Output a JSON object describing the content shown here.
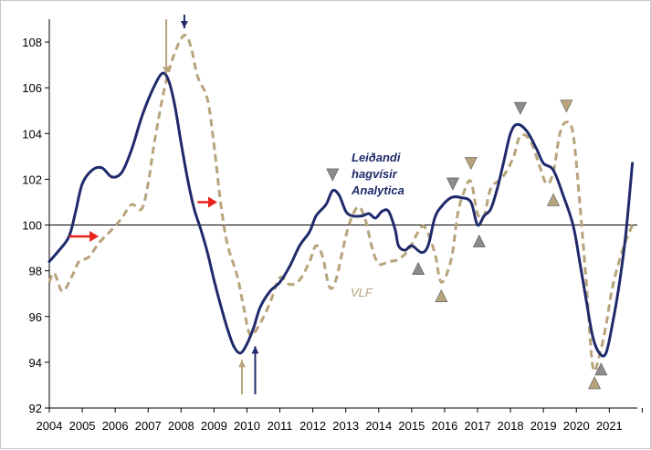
{
  "chart_data": {
    "type": "line",
    "title": "",
    "xlabel": "",
    "ylabel": "",
    "xlim": [
      2004,
      2021.85
    ],
    "ylim": [
      92,
      109
    ],
    "y_ticks": [
      92,
      94,
      96,
      98,
      100,
      102,
      104,
      106,
      108
    ],
    "x_ticks": [
      "2004",
      "2005",
      "2006",
      "2007",
      "2008",
      "2009",
      "2010",
      "2011",
      "2012",
      "2013",
      "2014",
      "2015",
      "2016",
      "2017",
      "2018",
      "2019",
      "2020",
      "2021"
    ],
    "grid": false,
    "reference_line": 100,
    "colors": {
      "series_lead": "#1f2a6b",
      "series_vlf": "#b8a47c",
      "red_arrow": "#e8231c",
      "marker_grey": "#8c8c8c"
    },
    "series": [
      {
        "name": "Leiðandi hagvísir Analytica",
        "style": "solid",
        "points": [
          [
            2004.0,
            98.4
          ],
          [
            2004.3,
            98.9
          ],
          [
            2004.6,
            99.5
          ],
          [
            2004.8,
            100.6
          ],
          [
            2005.0,
            101.8
          ],
          [
            2005.3,
            102.4
          ],
          [
            2005.6,
            102.5
          ],
          [
            2005.9,
            102.1
          ],
          [
            2006.2,
            102.3
          ],
          [
            2006.5,
            103.3
          ],
          [
            2006.8,
            104.7
          ],
          [
            2007.1,
            105.8
          ],
          [
            2007.4,
            106.6
          ],
          [
            2007.6,
            106.4
          ],
          [
            2007.8,
            105.3
          ],
          [
            2008.0,
            103.6
          ],
          [
            2008.2,
            102.0
          ],
          [
            2008.4,
            100.7
          ],
          [
            2008.6,
            99.8
          ],
          [
            2008.8,
            98.8
          ],
          [
            2009.0,
            97.6
          ],
          [
            2009.2,
            96.5
          ],
          [
            2009.4,
            95.5
          ],
          [
            2009.6,
            94.7
          ],
          [
            2009.8,
            94.4
          ],
          [
            2010.0,
            94.8
          ],
          [
            2010.2,
            95.5
          ],
          [
            2010.4,
            96.4
          ],
          [
            2010.7,
            97.1
          ],
          [
            2011.0,
            97.5
          ],
          [
            2011.3,
            98.2
          ],
          [
            2011.6,
            99.1
          ],
          [
            2011.9,
            99.7
          ],
          [
            2012.1,
            100.4
          ],
          [
            2012.4,
            100.9
          ],
          [
            2012.6,
            101.5
          ],
          [
            2012.8,
            101.3
          ],
          [
            2013.0,
            100.6
          ],
          [
            2013.2,
            100.4
          ],
          [
            2013.5,
            100.4
          ],
          [
            2013.7,
            100.5
          ],
          [
            2013.9,
            100.3
          ],
          [
            2014.1,
            100.6
          ],
          [
            2014.3,
            100.6
          ],
          [
            2014.5,
            99.8
          ],
          [
            2014.6,
            99.1
          ],
          [
            2014.8,
            98.9
          ],
          [
            2015.0,
            99.1
          ],
          [
            2015.3,
            98.8
          ],
          [
            2015.5,
            99.1
          ],
          [
            2015.7,
            100.3
          ],
          [
            2015.9,
            100.8
          ],
          [
            2016.2,
            101.2
          ],
          [
            2016.5,
            101.2
          ],
          [
            2016.8,
            101.0
          ],
          [
            2017.0,
            100.0
          ],
          [
            2017.2,
            100.4
          ],
          [
            2017.4,
            100.7
          ],
          [
            2017.6,
            101.6
          ],
          [
            2017.8,
            102.8
          ],
          [
            2018.0,
            104.0
          ],
          [
            2018.2,
            104.4
          ],
          [
            2018.5,
            104.1
          ],
          [
            2018.8,
            103.3
          ],
          [
            2019.0,
            102.7
          ],
          [
            2019.3,
            102.4
          ],
          [
            2019.6,
            101.3
          ],
          [
            2019.9,
            100.0
          ],
          [
            2020.1,
            98.4
          ],
          [
            2020.3,
            96.7
          ],
          [
            2020.5,
            95.1
          ],
          [
            2020.7,
            94.4
          ],
          [
            2020.9,
            94.4
          ],
          [
            2021.1,
            95.7
          ],
          [
            2021.3,
            97.4
          ],
          [
            2021.5,
            99.6
          ],
          [
            2021.7,
            102.7
          ]
        ]
      },
      {
        "name": "VLF",
        "style": "dashed",
        "points": [
          [
            2004.0,
            97.5
          ],
          [
            2004.15,
            97.9
          ],
          [
            2004.4,
            97.1
          ],
          [
            2004.7,
            97.8
          ],
          [
            2004.9,
            98.4
          ],
          [
            2005.2,
            98.6
          ],
          [
            2005.5,
            99.2
          ],
          [
            2005.9,
            99.8
          ],
          [
            2006.2,
            100.3
          ],
          [
            2006.5,
            100.9
          ],
          [
            2006.8,
            100.7
          ],
          [
            2007.0,
            101.8
          ],
          [
            2007.2,
            103.7
          ],
          [
            2007.5,
            106.0
          ],
          [
            2007.8,
            107.5
          ],
          [
            2008.1,
            108.3
          ],
          [
            2008.3,
            107.8
          ],
          [
            2008.5,
            106.5
          ],
          [
            2008.8,
            105.5
          ],
          [
            2009.0,
            103.5
          ],
          [
            2009.2,
            101.0
          ],
          [
            2009.4,
            99.2
          ],
          [
            2009.7,
            97.8
          ],
          [
            2009.9,
            96.4
          ],
          [
            2010.1,
            95.2
          ],
          [
            2010.4,
            95.7
          ],
          [
            2010.7,
            96.6
          ],
          [
            2011.0,
            97.7
          ],
          [
            2011.3,
            97.4
          ],
          [
            2011.6,
            97.6
          ],
          [
            2011.9,
            98.4
          ],
          [
            2012.1,
            99.1
          ],
          [
            2012.3,
            98.6
          ],
          [
            2012.5,
            97.3
          ],
          [
            2012.7,
            97.6
          ],
          [
            2013.0,
            99.5
          ],
          [
            2013.2,
            100.4
          ],
          [
            2013.4,
            100.8
          ],
          [
            2013.6,
            100.2
          ],
          [
            2013.8,
            99.0
          ],
          [
            2014.0,
            98.3
          ],
          [
            2014.3,
            98.4
          ],
          [
            2014.6,
            98.5
          ],
          [
            2014.9,
            98.9
          ],
          [
            2015.2,
            99.7
          ],
          [
            2015.4,
            99.9
          ],
          [
            2015.7,
            98.8
          ],
          [
            2015.9,
            97.5
          ],
          [
            2016.2,
            98.5
          ],
          [
            2016.4,
            100.5
          ],
          [
            2016.6,
            101.5
          ],
          [
            2016.8,
            101.9
          ],
          [
            2017.0,
            100.5
          ],
          [
            2017.2,
            100.4
          ],
          [
            2017.4,
            101.6
          ],
          [
            2017.7,
            102.0
          ],
          [
            2017.9,
            102.4
          ],
          [
            2018.1,
            103.0
          ],
          [
            2018.3,
            103.9
          ],
          [
            2018.6,
            103.7
          ],
          [
            2018.9,
            102.5
          ],
          [
            2019.1,
            101.8
          ],
          [
            2019.3,
            102.3
          ],
          [
            2019.5,
            104.0
          ],
          [
            2019.7,
            104.5
          ],
          [
            2019.9,
            104.0
          ],
          [
            2020.1,
            101.0
          ],
          [
            2020.3,
            97.5
          ],
          [
            2020.5,
            93.8
          ],
          [
            2020.7,
            94.3
          ],
          [
            2020.9,
            95.6
          ],
          [
            2021.1,
            97.3
          ],
          [
            2021.4,
            98.9
          ],
          [
            2021.7,
            100.0
          ]
        ]
      }
    ],
    "annotations": {
      "lead_label": [
        "Leiðandi",
        "hagvísir",
        "Analytica"
      ],
      "vlf_label": "VLF",
      "vertical_arrows": [
        {
          "x": 2007.55,
          "y_from": 109.0,
          "y_to": 106.6,
          "direction": "down",
          "color": "tan"
        },
        {
          "x": 2008.1,
          "y_from": 109.2,
          "y_to": 108.6,
          "direction": "down",
          "color": "navy"
        },
        {
          "x": 2009.85,
          "y_from": 92.6,
          "y_to": 94.1,
          "direction": "up",
          "color": "tan"
        },
        {
          "x": 2010.25,
          "y_from": 92.6,
          "y_to": 94.7,
          "direction": "up",
          "color": "navy"
        }
      ],
      "red_arrows": [
        {
          "x_from": 2004.6,
          "x_to": 2005.5,
          "y": 99.5
        },
        {
          "x_from": 2008.5,
          "x_to": 2009.1,
          "y": 101.0
        }
      ],
      "markers": [
        {
          "x": 2012.6,
          "y": 102.2,
          "kind": "peak",
          "color": "grey"
        },
        {
          "x": 2015.2,
          "y": 98.1,
          "kind": "trough",
          "color": "grey"
        },
        {
          "x": 2015.9,
          "y": 96.9,
          "kind": "trough",
          "color": "tan"
        },
        {
          "x": 2016.25,
          "y": 101.8,
          "kind": "peak",
          "color": "grey"
        },
        {
          "x": 2016.8,
          "y": 102.7,
          "kind": "peak",
          "color": "tan"
        },
        {
          "x": 2017.05,
          "y": 99.3,
          "kind": "trough",
          "color": "grey"
        },
        {
          "x": 2018.3,
          "y": 105.1,
          "kind": "peak",
          "color": "grey"
        },
        {
          "x": 2019.3,
          "y": 101.1,
          "kind": "trough",
          "color": "tan"
        },
        {
          "x": 2019.7,
          "y": 105.2,
          "kind": "peak",
          "color": "tan"
        },
        {
          "x": 2020.55,
          "y": 93.1,
          "kind": "trough",
          "color": "tan"
        },
        {
          "x": 2020.75,
          "y": 93.7,
          "kind": "trough",
          "color": "grey"
        }
      ]
    }
  }
}
